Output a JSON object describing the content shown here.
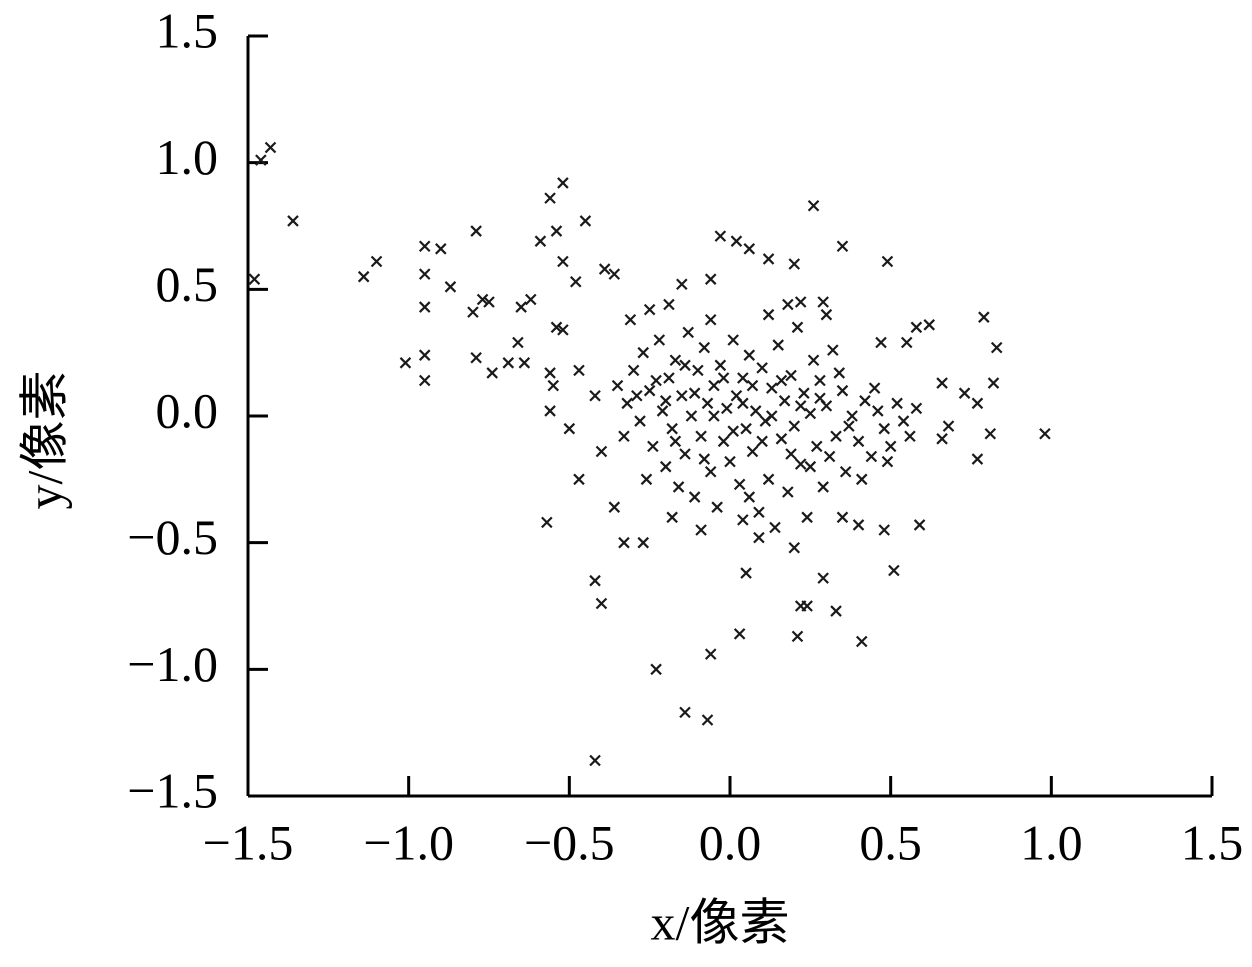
{
  "chart_data": {
    "type": "scatter",
    "xlabel": "x/像素",
    "ylabel": "y/像素",
    "color": "#1a1a1a",
    "marker": "x",
    "xlim": [
      -1.5,
      1.5
    ],
    "ylim": [
      -1.5,
      1.5
    ],
    "xticks": [
      {
        "value": -1.5,
        "label": "−1.5"
      },
      {
        "value": -1.0,
        "label": "−1.0"
      },
      {
        "value": -0.5,
        "label": "−0.5"
      },
      {
        "value": 0,
        "label": "0.0"
      },
      0.5,
      {
        "value": 1.0,
        "label": "1.0"
      },
      1.5
    ],
    "yticks": [
      {
        "value": -1.5,
        "label": "−1.5"
      },
      {
        "value": -1.0,
        "label": "−1.0"
      },
      {
        "value": -0.5,
        "label": "−0.5"
      },
      {
        "value": 0,
        "label": "0.0"
      },
      0.5,
      {
        "value": 1.0,
        "label": "1.0"
      },
      1.5
    ],
    "x": [
      -1.46,
      -1.43,
      -1.36,
      -1.48,
      -1.14,
      -1.1,
      -1.01,
      -0.95,
      -0.95,
      -0.95,
      -0.95,
      -0.95,
      -0.9,
      -0.87,
      -0.79,
      -0.8,
      -0.77,
      -0.75,
      -0.79,
      -0.74,
      -0.69,
      -0.66,
      -0.64,
      -0.65,
      -0.62,
      -0.59,
      -0.56,
      -0.52,
      -0.54,
      -0.52,
      -0.45,
      -0.48,
      -0.54,
      -0.52,
      -0.56,
      -0.57,
      -0.47,
      -0.5,
      -0.42,
      -0.4,
      -0.42,
      -0.4,
      -0.39,
      -0.36,
      -0.36,
      -0.33,
      -0.27,
      -0.23,
      -0.14,
      -0.07,
      -0.06,
      0.03,
      0.05,
      0.21,
      0.22,
      0.24,
      0.33,
      0.29,
      0.41,
      0.51,
      0.59,
      0.48,
      0.98,
      0.77,
      0.81,
      0.83,
      0.79,
      0.82,
      0.77,
      0.73,
      0.66,
      0.68,
      0.66,
      0.62,
      0.58,
      0.55,
      0.47,
      0.49,
      0.35,
      0.26,
      0.2,
      0.12,
      0.06,
      0.02,
      -0.03,
      -0.06,
      -0.15,
      -0.19,
      0.22,
      0.29,
      -0.25,
      -0.31,
      -0.47,
      -0.42,
      -0.56,
      -0.55,
      -0.35,
      -0.32,
      -0.3,
      -0.28,
      -0.27,
      -0.25,
      -0.24,
      -0.22,
      -0.21,
      -0.2,
      -0.19,
      -0.18,
      -0.17,
      -0.16,
      -0.15,
      -0.14,
      -0.13,
      -0.12,
      -0.11,
      -0.1,
      -0.09,
      -0.08,
      -0.07,
      -0.06,
      -0.05,
      -0.04,
      -0.03,
      -0.02,
      -0.01,
      0.0,
      0.01,
      0.02,
      0.03,
      0.04,
      0.05,
      0.06,
      0.07,
      0.08,
      0.09,
      0.1,
      0.11,
      0.12,
      0.13,
      0.14,
      0.15,
      0.16,
      0.17,
      0.18,
      0.19,
      0.2,
      0.21,
      0.22,
      0.23,
      0.24,
      0.25,
      0.26,
      0.27,
      0.28,
      0.29,
      0.3,
      0.32,
      0.33,
      0.35,
      0.36,
      0.38,
      0.4,
      0.42,
      0.44,
      0.46,
      0.48,
      0.5,
      0.52,
      0.54,
      0.56,
      0.58,
      -0.33,
      -0.29,
      -0.26,
      -0.23,
      -0.2,
      -0.17,
      -0.14,
      -0.11,
      -0.08,
      -0.05,
      -0.02,
      0.01,
      0.04,
      0.07,
      0.1,
      0.13,
      0.16,
      0.19,
      0.22,
      0.25,
      0.28,
      0.31,
      0.34,
      0.37,
      0.41,
      0.45,
      0.49,
      0.06,
      0.12,
      -0.06,
      0.18,
      0.3,
      -0.09,
      0.09,
      0.2,
      0.04,
      -0.18,
      0.35,
      0.4
    ],
    "values": [
      1.01,
      1.06,
      0.77,
      0.54,
      0.55,
      0.61,
      0.21,
      0.24,
      0.14,
      0.67,
      0.56,
      0.43,
      0.66,
      0.51,
      0.73,
      0.41,
      0.46,
      0.45,
      0.23,
      0.17,
      0.21,
      0.29,
      0.21,
      0.43,
      0.46,
      0.69,
      0.86,
      0.92,
      0.73,
      0.61,
      0.77,
      0.53,
      0.35,
      0.34,
      0.17,
      -0.42,
      -0.25,
      -0.05,
      -0.65,
      -0.74,
      -1.36,
      -0.14,
      0.58,
      0.56,
      -0.36,
      -0.5,
      -0.5,
      -1.0,
      -1.17,
      -1.2,
      -0.94,
      -0.86,
      -0.62,
      -0.87,
      -0.75,
      -0.75,
      -0.77,
      -0.64,
      -0.89,
      -0.61,
      -0.43,
      -0.45,
      -0.07,
      -0.17,
      -0.07,
      0.27,
      0.39,
      0.13,
      0.05,
      0.09,
      -0.09,
      -0.04,
      0.13,
      0.36,
      0.35,
      0.29,
      0.29,
      0.61,
      0.67,
      0.83,
      0.6,
      0.62,
      0.66,
      0.69,
      0.71,
      0.54,
      0.52,
      0.44,
      0.45,
      0.45,
      0.42,
      0.38,
      0.18,
      0.08,
      0.02,
      0.12,
      0.12,
      0.05,
      0.18,
      -0.02,
      0.25,
      0.1,
      -0.12,
      0.3,
      0.02,
      -0.2,
      0.15,
      -0.05,
      0.22,
      -0.28,
      0.08,
      -0.15,
      0.33,
      0.0,
      -0.32,
      0.18,
      -0.08,
      0.27,
      0.05,
      -0.22,
      0.12,
      -0.36,
      0.2,
      -0.1,
      0.03,
      -0.18,
      0.3,
      0.08,
      -0.27,
      0.15,
      -0.05,
      0.24,
      -0.14,
      0.02,
      -0.38,
      0.19,
      -0.02,
      -0.25,
      0.11,
      -0.44,
      0.28,
      -0.09,
      0.06,
      -0.3,
      0.16,
      -0.04,
      0.35,
      -0.19,
      0.09,
      -0.4,
      0.01,
      0.22,
      -0.12,
      0.14,
      -0.28,
      0.04,
      0.26,
      -0.08,
      0.1,
      -0.22,
      0.0,
      -0.1,
      0.06,
      -0.16,
      0.02,
      -0.05,
      -0.12,
      0.05,
      -0.02,
      -0.08,
      0.03,
      -0.08,
      0.08,
      -0.25,
      0.14,
      0.06,
      -0.1,
      0.2,
      0.09,
      -0.17,
      0.0,
      0.15,
      -0.06,
      0.05,
      0.12,
      -0.1,
      0.0,
      0.14,
      -0.15,
      0.04,
      -0.2,
      0.07,
      -0.16,
      0.17,
      -0.04,
      -0.25,
      0.11,
      -0.18,
      -0.32,
      0.4,
      0.38,
      0.44,
      0.4,
      -0.45,
      -0.48,
      -0.52,
      -0.41,
      -0.4,
      -0.4,
      -0.43
    ]
  }
}
